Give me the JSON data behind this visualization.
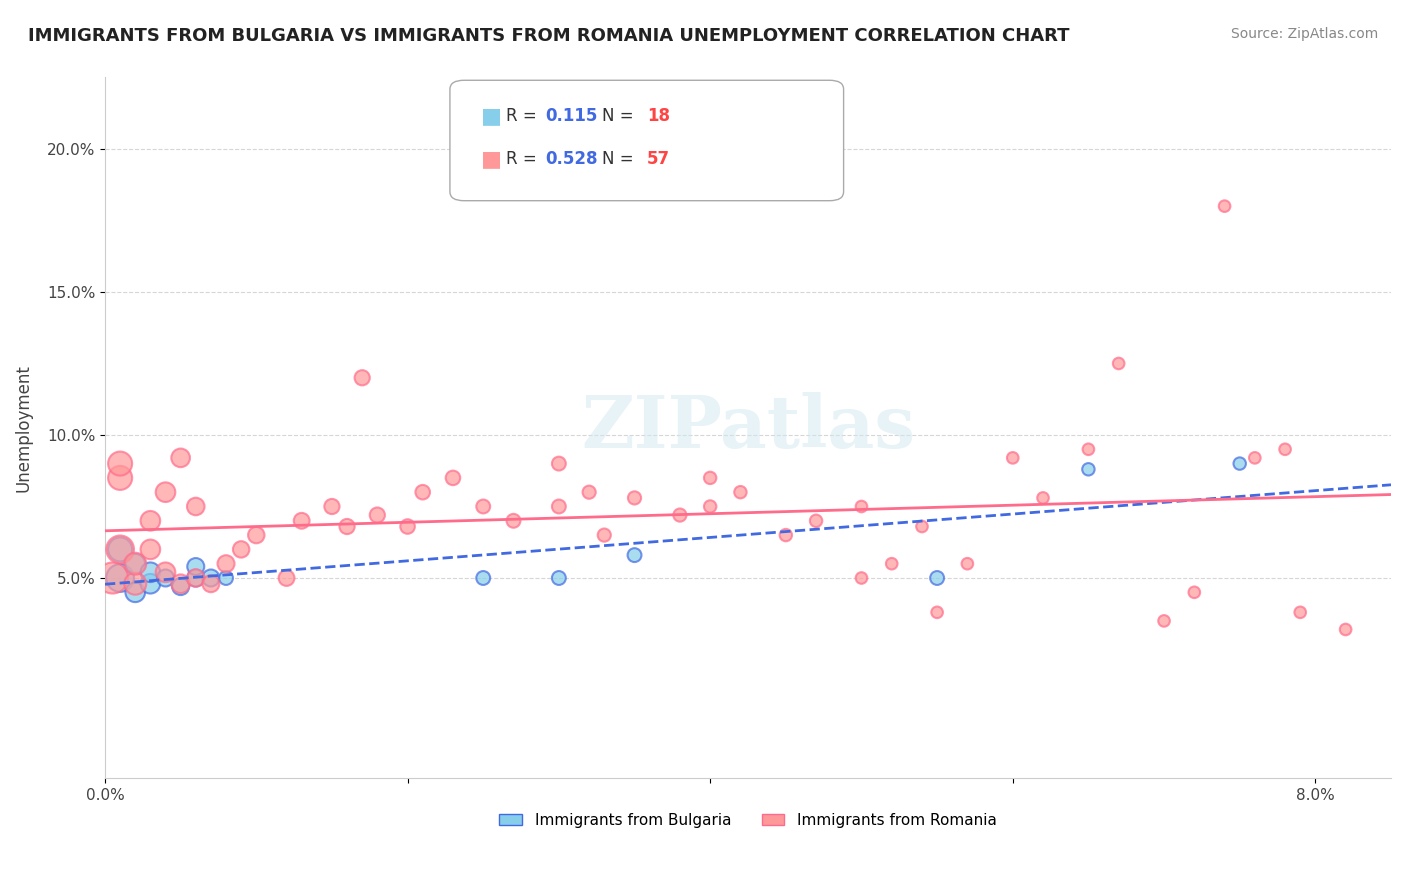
{
  "title": "IMMIGRANTS FROM BULGARIA VS IMMIGRANTS FROM ROMANIA UNEMPLOYMENT CORRELATION CHART",
  "source": "Source: ZipAtlas.com",
  "ylabel": "Unemployment",
  "xlim": [
    0.0,
    0.085
  ],
  "ylim": [
    -0.02,
    0.225
  ],
  "watermark": "ZIPatlas",
  "legend_r_bulgaria_val": "0.115",
  "legend_n_bulgaria_val": "18",
  "legend_r_romania_val": "0.528",
  "legend_n_romania_val": "57",
  "bulgaria_color": "#87CEEB",
  "romania_color": "#FF9999",
  "bulgaria_line_color": "#4169E1",
  "romania_line_color": "#FF6B8A",
  "bulgaria_label": "Immigrants from Bulgaria",
  "romania_label": "Immigrants from Romania",
  "bulgaria_scatter": {
    "x": [
      0.001,
      0.001,
      0.002,
      0.002,
      0.003,
      0.003,
      0.004,
      0.005,
      0.006,
      0.006,
      0.007,
      0.008,
      0.025,
      0.03,
      0.035,
      0.055,
      0.065,
      0.075
    ],
    "y": [
      0.05,
      0.06,
      0.045,
      0.055,
      0.048,
      0.052,
      0.05,
      0.047,
      0.05,
      0.054,
      0.05,
      0.05,
      0.05,
      0.05,
      0.058,
      0.05,
      0.088,
      0.09
    ],
    "sizes": [
      400,
      300,
      200,
      200,
      200,
      200,
      150,
      150,
      150,
      150,
      150,
      100,
      100,
      100,
      100,
      100,
      80,
      80
    ]
  },
  "romania_scatter": {
    "x": [
      0.0005,
      0.001,
      0.001,
      0.001,
      0.002,
      0.002,
      0.003,
      0.003,
      0.004,
      0.004,
      0.005,
      0.005,
      0.006,
      0.006,
      0.007,
      0.008,
      0.009,
      0.01,
      0.012,
      0.013,
      0.015,
      0.016,
      0.017,
      0.018,
      0.02,
      0.021,
      0.023,
      0.025,
      0.027,
      0.03,
      0.03,
      0.032,
      0.033,
      0.035,
      0.038,
      0.04,
      0.04,
      0.042,
      0.045,
      0.047,
      0.05,
      0.05,
      0.052,
      0.054,
      0.055,
      0.057,
      0.06,
      0.062,
      0.065,
      0.067,
      0.07,
      0.072,
      0.074,
      0.076,
      0.078,
      0.079,
      0.082
    ],
    "y": [
      0.05,
      0.06,
      0.085,
      0.09,
      0.048,
      0.055,
      0.06,
      0.07,
      0.052,
      0.08,
      0.048,
      0.092,
      0.05,
      0.075,
      0.048,
      0.055,
      0.06,
      0.065,
      0.05,
      0.07,
      0.075,
      0.068,
      0.12,
      0.072,
      0.068,
      0.08,
      0.085,
      0.075,
      0.07,
      0.075,
      0.09,
      0.08,
      0.065,
      0.078,
      0.072,
      0.075,
      0.085,
      0.08,
      0.065,
      0.07,
      0.075,
      0.05,
      0.055,
      0.068,
      0.038,
      0.055,
      0.092,
      0.078,
      0.095,
      0.125,
      0.035,
      0.045,
      0.18,
      0.092,
      0.095,
      0.038,
      0.032
    ],
    "sizes": [
      500,
      400,
      300,
      300,
      250,
      250,
      200,
      200,
      200,
      200,
      180,
      180,
      160,
      160,
      150,
      150,
      140,
      140,
      130,
      130,
      120,
      120,
      120,
      120,
      110,
      110,
      110,
      100,
      100,
      100,
      100,
      90,
      90,
      90,
      90,
      80,
      80,
      80,
      80,
      80,
      70,
      70,
      70,
      70,
      70,
      70,
      70,
      70,
      70,
      70,
      70,
      70,
      70,
      70,
      70,
      70,
      70
    ]
  }
}
